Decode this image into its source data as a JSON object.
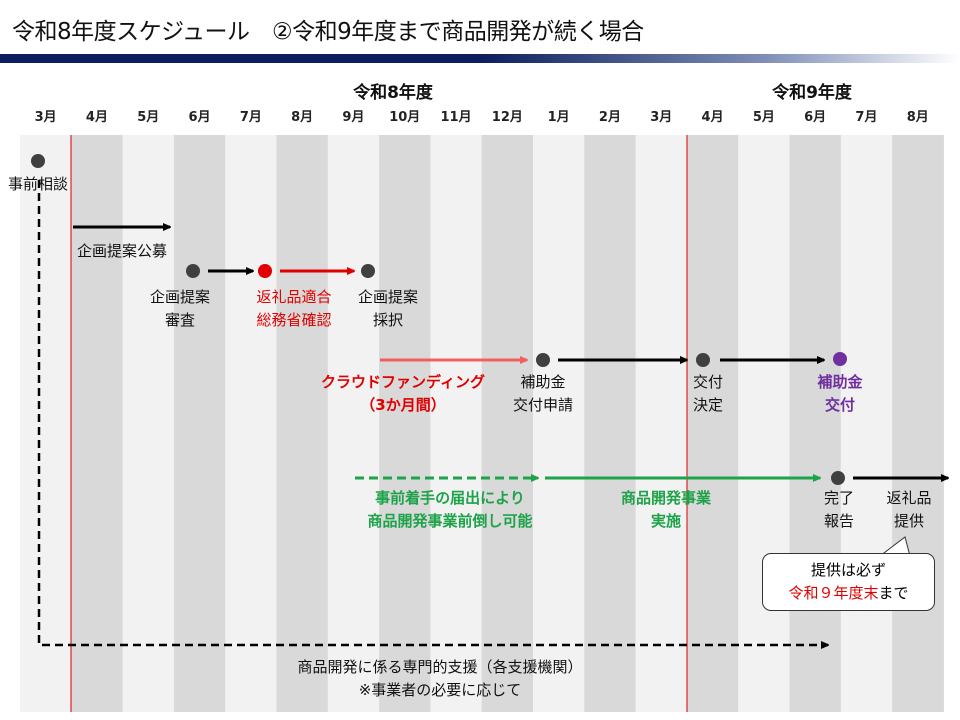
{
  "title": "令和8年度スケジュール　②令和9年度まで商品開発が続く場合",
  "years": [
    "令和8年度",
    "令和9年度"
  ],
  "months": [
    "3月",
    "4月",
    "5月",
    "6月",
    "7月",
    "8月",
    "9月",
    "10月",
    "11月",
    "12月",
    "1月",
    "2月",
    "3月",
    "4月",
    "5月",
    "6月",
    "7月",
    "8月"
  ],
  "colors": {
    "header_bar": "#0b1f5c",
    "stripe_light": "#f2f2f2",
    "stripe_dark": "#d9d9d9",
    "fiscal_line": "#e00000",
    "red": "#e00000",
    "green": "#1fa34a",
    "purple": "#7030a0",
    "pink": "#f06060"
  },
  "milestones": {
    "consult": "事前相談",
    "call": "企画提案公募",
    "review": [
      "企画提案",
      "審査"
    ],
    "ministry": [
      "返礼品適合",
      "総務省確認"
    ],
    "adopt": [
      "企画提案",
      "採択"
    ],
    "crowd": [
      "クラウドファンディング",
      "（3か月間）"
    ],
    "apply": [
      "補助金",
      "交付申請"
    ],
    "decision": [
      "交付",
      "決定"
    ],
    "grant": [
      "補助金",
      "交付"
    ],
    "early": [
      "事前着手の届出により",
      "商品開発事業前倒し可能"
    ],
    "dev": [
      "商品開発事業",
      "実施"
    ],
    "report": [
      "完了",
      "報告"
    ],
    "provide": [
      "返礼品",
      "提供"
    ]
  },
  "callout": {
    "line1": "提供は必ず",
    "line2_red": "令和９年度末",
    "line2_rest": "まで"
  },
  "support": [
    "商品開発に係る専門的支援（各支援機関）",
    "※事業者の必要に応じて"
  ]
}
